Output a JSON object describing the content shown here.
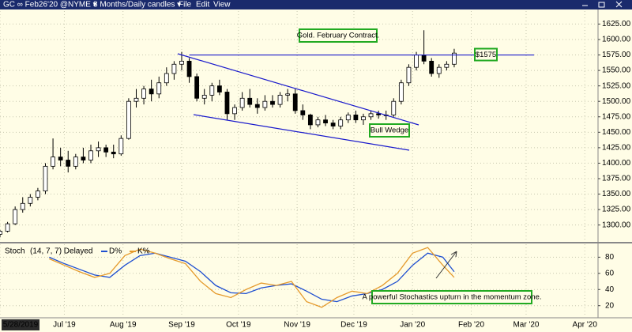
{
  "toolbar": {
    "symbol": "GC ∞ Feb26'20 @NYME ▾",
    "period": "8 Months/Daily candles ▾",
    "menus": [
      "File",
      "Edit",
      "View"
    ]
  },
  "chart_data": [
    {
      "type": "candlestick",
      "x": [
        0,
        4,
        8,
        12,
        16,
        20,
        24,
        28,
        32,
        36,
        40,
        44,
        48,
        52,
        56,
        60,
        64,
        68,
        72,
        76,
        80,
        84,
        88,
        92,
        96,
        100,
        104,
        108,
        112,
        116,
        120,
        124,
        128,
        132,
        136,
        140,
        144,
        148,
        152,
        156,
        160,
        164,
        168,
        172,
        176,
        180,
        184,
        188,
        192,
        196,
        200,
        204,
        208,
        212,
        216,
        220,
        224,
        228,
        232,
        236,
        240
      ],
      "open": [
        1285,
        1290,
        1302,
        1325,
        1335,
        1345,
        1355,
        1395,
        1410,
        1405,
        1395,
        1410,
        1405,
        1420,
        1425,
        1418,
        1415,
        1440,
        1500,
        1505,
        1520,
        1512,
        1530,
        1545,
        1560,
        1565,
        1540,
        1505,
        1510,
        1525,
        1515,
        1480,
        1490,
        1505,
        1495,
        1490,
        1500,
        1495,
        1510,
        1512,
        1485,
        1478,
        1462,
        1470,
        1465,
        1460,
        1470,
        1478,
        1470,
        1475,
        1480,
        1478,
        1478,
        1500,
        1530,
        1555,
        1575,
        1565,
        1545,
        1555,
        1560
      ],
      "high": [
        1292,
        1305,
        1330,
        1345,
        1350,
        1360,
        1400,
        1440,
        1425,
        1420,
        1415,
        1425,
        1430,
        1435,
        1430,
        1430,
        1445,
        1505,
        1520,
        1525,
        1535,
        1540,
        1555,
        1565,
        1580,
        1570,
        1545,
        1520,
        1530,
        1535,
        1520,
        1495,
        1515,
        1520,
        1505,
        1510,
        1510,
        1515,
        1520,
        1520,
        1495,
        1480,
        1475,
        1478,
        1470,
        1475,
        1482,
        1485,
        1480,
        1485,
        1485,
        1485,
        1505,
        1535,
        1560,
        1580,
        1615,
        1570,
        1560,
        1565,
        1585
      ],
      "low": [
        1280,
        1288,
        1300,
        1320,
        1330,
        1340,
        1350,
        1390,
        1395,
        1385,
        1390,
        1400,
        1400,
        1410,
        1410,
        1408,
        1412,
        1438,
        1490,
        1495,
        1500,
        1505,
        1525,
        1535,
        1550,
        1530,
        1500,
        1495,
        1500,
        1510,
        1470,
        1470,
        1485,
        1490,
        1480,
        1485,
        1490,
        1490,
        1500,
        1480,
        1470,
        1455,
        1458,
        1460,
        1455,
        1455,
        1465,
        1465,
        1462,
        1470,
        1472,
        1470,
        1475,
        1495,
        1525,
        1550,
        1560,
        1540,
        1538,
        1550,
        1555
      ],
      "close": [
        1290,
        1302,
        1325,
        1335,
        1345,
        1355,
        1395,
        1410,
        1405,
        1395,
        1410,
        1405,
        1420,
        1425,
        1418,
        1415,
        1440,
        1500,
        1505,
        1520,
        1512,
        1530,
        1545,
        1560,
        1565,
        1540,
        1505,
        1510,
        1525,
        1515,
        1480,
        1490,
        1505,
        1495,
        1490,
        1500,
        1495,
        1510,
        1512,
        1485,
        1478,
        1462,
        1470,
        1465,
        1460,
        1470,
        1478,
        1470,
        1475,
        1480,
        1478,
        1478,
        1500,
        1530,
        1555,
        1575,
        1565,
        1545,
        1555,
        1560,
        1578
      ],
      "ylim": [
        1274,
        1646
      ],
      "yticks": [
        {
          "value": 1300,
          "label": "1300.00"
        },
        {
          "value": 1325,
          "label": "1325.00"
        },
        {
          "value": 1350,
          "label": "1350.00"
        },
        {
          "value": 1375,
          "label": "1375.00"
        },
        {
          "value": 1400,
          "label": "1400.00"
        },
        {
          "value": 1425,
          "label": "1425.00"
        },
        {
          "value": 1450,
          "label": "1450.00"
        },
        {
          "value": 1475,
          "label": "1475.00"
        },
        {
          "value": 1500,
          "label": "1500.00"
        },
        {
          "value": 1525,
          "label": "1525.00"
        },
        {
          "value": 1550,
          "label": "1550.00"
        },
        {
          "value": 1575,
          "label": "1575.00"
        },
        {
          "value": 1600,
          "label": "1600.00"
        },
        {
          "value": 1625,
          "label": "1625.00"
        }
      ],
      "xlim": [
        0,
        316
      ],
      "level": {
        "value": 1575,
        "label": "$1575"
      },
      "annotations": [
        "Gold. February Contract.",
        "Bull Wedge"
      ],
      "grid": true
    },
    {
      "type": "line",
      "title": "Stoch",
      "subtitle": "(14, 7, 7) Delayed",
      "x": [
        26,
        34,
        42,
        50,
        58,
        66,
        74,
        82,
        90,
        98,
        106,
        114,
        122,
        130,
        138,
        146,
        154,
        162,
        170,
        178,
        186,
        194,
        202,
        210,
        218,
        226,
        234,
        240
      ],
      "series": [
        {
          "name": "D%",
          "color": "#1f4fd0",
          "values": [
            80,
            72,
            65,
            58,
            55,
            70,
            82,
            85,
            80,
            75,
            62,
            45,
            36,
            35,
            42,
            45,
            47,
            38,
            28,
            25,
            32,
            35,
            40,
            50,
            70,
            85,
            80,
            62
          ]
        },
        {
          "name": "K%",
          "color": "#e59a2c",
          "values": [
            78,
            70,
            62,
            55,
            60,
            82,
            90,
            85,
            78,
            72,
            50,
            35,
            30,
            40,
            48,
            45,
            50,
            25,
            18,
            30,
            38,
            35,
            45,
            60,
            85,
            92,
            70,
            55
          ]
        }
      ],
      "ylim": [
        7,
        96
      ],
      "yticks": [
        20,
        40,
        60,
        80
      ],
      "xlim": [
        0,
        316
      ],
      "xticks": [
        {
          "value": 0,
          "label": "5/28/2019"
        },
        {
          "value": 34,
          "label": "Jul '19"
        },
        {
          "value": 65,
          "label": "Aug '19"
        },
        {
          "value": 96,
          "label": "Sep '19"
        },
        {
          "value": 126,
          "label": "Oct '19"
        },
        {
          "value": 157,
          "label": "Nov '19"
        },
        {
          "value": 187,
          "label": "Dec '19"
        },
        {
          "value": 218,
          "label": "Jan '20"
        },
        {
          "value": 249,
          "label": "Feb '20"
        },
        {
          "value": 278,
          "label": "Mar '20"
        },
        {
          "value": 309,
          "label": "Apr '20"
        }
      ],
      "annotations": [
        "A powerful Stochastics upturn in the momentum zone."
      ],
      "grid": true
    }
  ]
}
